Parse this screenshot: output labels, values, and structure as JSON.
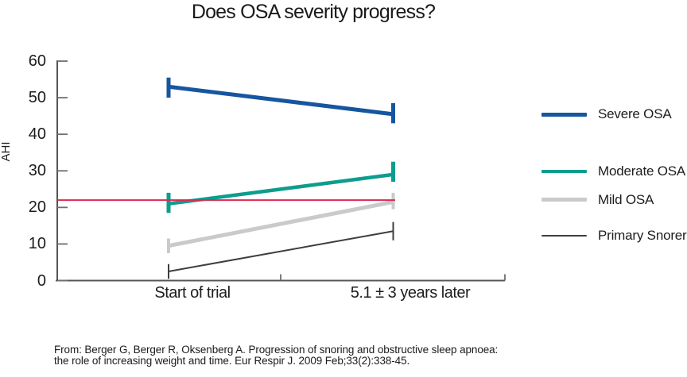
{
  "title": "Does OSA severity progress?",
  "chart_data": {
    "type": "line",
    "title": "Does OSA severity progress?",
    "xlabel": "",
    "ylabel": "AHI",
    "ylim": [
      0,
      60
    ],
    "y_ticks": [
      0,
      10,
      20,
      30,
      40,
      50,
      60
    ],
    "categories": [
      "Start of trial",
      "5.1 ± 3 years later"
    ],
    "series": [
      {
        "name": "Severe OSA",
        "color": "#15569f",
        "values": [
          53,
          45.5
        ],
        "errors": [
          [
            50,
            55.5
          ],
          [
            43,
            48.5
          ]
        ]
      },
      {
        "name": "Moderate OSA",
        "color": "#0d9d8d",
        "values": [
          21,
          29
        ],
        "errors": [
          [
            18.5,
            24
          ],
          [
            27,
            32.5
          ]
        ]
      },
      {
        "name": "Mild OSA",
        "color": "#c9cacb",
        "values": [
          9.5,
          21.5
        ],
        "errors": [
          [
            7.5,
            11.5
          ],
          [
            19.5,
            24
          ]
        ]
      },
      {
        "name": "Primary Snorers",
        "color": "#3e3e40",
        "values": [
          2.5,
          13.5
        ],
        "errors": [
          [
            0.5,
            4.5
          ],
          [
            11,
            16
          ]
        ]
      }
    ],
    "reference_line": {
      "value": 22,
      "color": "#dc2a50"
    },
    "grid": false,
    "legend_position": "right",
    "error_bars": true
  },
  "footer": {
    "line1": "From: Berger G, Berger R, Oksenberg A. Progression of snoring and obstructive sleep apnoea:",
    "line2": "the role of increasing weight and time. Eur Respir J. 2009 Feb;33(2):338-45."
  }
}
